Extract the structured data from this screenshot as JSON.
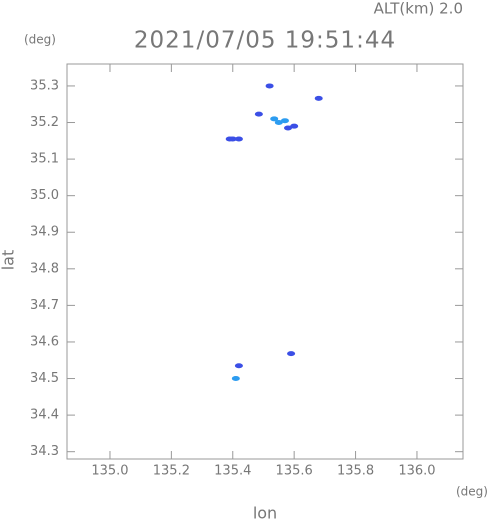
{
  "chart_data": {
    "type": "scatter",
    "title": "2021/07/05 19:51:44",
    "subtitle": "ALT(km) 2.0",
    "y_unit": "(deg)",
    "x_unit": "(deg)",
    "xlabel": "lon",
    "ylabel": "lat",
    "xlim": [
      134.86,
      136.15
    ],
    "ylim": [
      34.28,
      35.36
    ],
    "xticks": [
      {
        "value": 135.0,
        "label": "135.0"
      },
      135.2,
      135.4,
      135.6,
      135.8,
      {
        "value": 136.0,
        "label": "136.0"
      }
    ],
    "yticks": [
      34.3,
      34.4,
      34.5,
      34.6,
      34.7,
      34.8,
      34.9,
      {
        "value": 35.0,
        "label": "35.0"
      },
      35.1,
      35.2,
      35.3
    ],
    "series": [
      {
        "color": "#3b4fe6",
        "x": [
          135.52,
          135.68,
          135.485,
          135.58,
          135.6,
          135.39,
          135.4,
          135.42,
          135.42,
          135.59
        ],
        "values": [
          35.3,
          35.266,
          35.223,
          35.185,
          35.19,
          35.155,
          35.155,
          35.155,
          34.535,
          34.568
        ]
      },
      {
        "color": "#2c9cf0",
        "x": [
          135.535,
          135.55,
          135.57,
          135.41
        ],
        "values": [
          35.21,
          35.2,
          35.205,
          34.5
        ]
      }
    ]
  }
}
